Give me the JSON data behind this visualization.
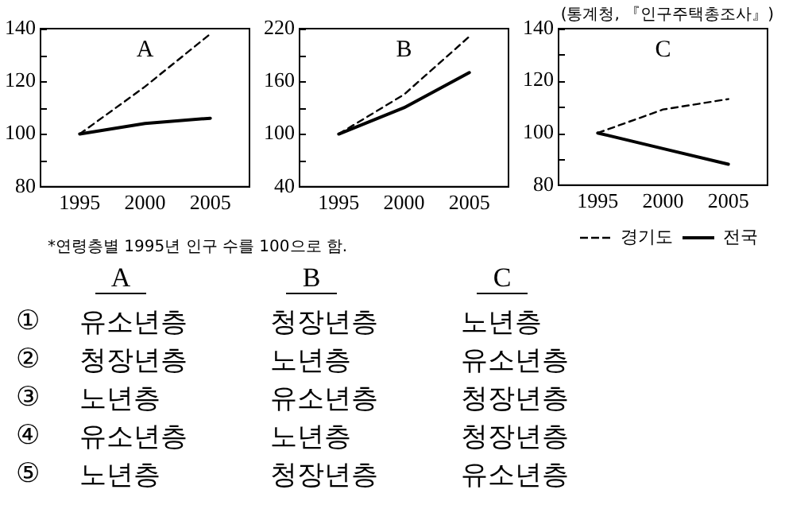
{
  "chart_data": [
    {
      "type": "line",
      "title": "A",
      "x": [
        1995,
        2000,
        2005
      ],
      "xlim": [
        1992,
        2008
      ],
      "xticks": [
        1995,
        2000,
        2005
      ],
      "ylim": [
        80,
        140
      ],
      "yticks": [
        80,
        {
          "value": 90,
          "label": null
        },
        100,
        {
          "value": 110,
          "label": null
        },
        120,
        {
          "value": 130,
          "label": null
        },
        140
      ],
      "grid": false,
      "legend": false,
      "marker": "none",
      "series": [
        {
          "color": "#000000",
          "line_style": "dashed",
          "values": [
            100,
            118,
            138
          ]
        },
        {
          "color": "#000000",
          "line_style": "solid",
          "values": [
            100,
            104,
            106
          ]
        }
      ],
      "annotations": [
        "*연령층별 1995년 인구 수를 100으로 함."
      ]
    },
    {
      "type": "line",
      "title": "B",
      "x": [
        1995,
        2000,
        2005
      ],
      "xlim": [
        1992,
        2008
      ],
      "xticks": [
        1995,
        2000,
        2005
      ],
      "ylim": [
        40,
        220
      ],
      "yticks": [
        40,
        {
          "value": 70,
          "label": null
        },
        100,
        {
          "value": 130,
          "label": null
        },
        160,
        {
          "value": 190,
          "label": null
        },
        220
      ],
      "grid": false,
      "legend": false,
      "marker": "none",
      "series": [
        {
          "color": "#000000",
          "line_style": "dashed",
          "values": [
            100,
            145,
            211
          ]
        },
        {
          "color": "#000000",
          "line_style": "solid",
          "values": [
            100,
            130,
            170
          ]
        }
      ]
    },
    {
      "type": "line",
      "title": "C",
      "x": [
        1995,
        2000,
        2005
      ],
      "xlim": [
        1992,
        2008
      ],
      "xticks": [
        1995,
        2000,
        2005
      ],
      "ylim": [
        80,
        140
      ],
      "yticks": [
        80,
        {
          "value": 90,
          "label": null
        },
        100,
        {
          "value": 110,
          "label": null
        },
        120,
        {
          "value": 130,
          "label": null
        },
        140
      ],
      "grid": false,
      "legend": "bottom right",
      "marker": "none",
      "series": [
        {
          "name": "경기도",
          "color": "#000000",
          "line_style": "dashed",
          "values": [
            100,
            109,
            113
          ]
        },
        {
          "name": "전국",
          "color": "#000000",
          "line_style": "solid",
          "values": [
            100,
            94,
            88
          ]
        }
      ],
      "annotations": [
        "(통계청, 『인구주택총조사』)"
      ]
    },
    {
      "type": "other",
      "annotations": [
        "A",
        "B",
        "C",
        "①",
        "유소년층",
        "청장년층",
        "노년층",
        "②",
        "청장년층",
        "노년층",
        "유소년층",
        "③",
        "노년층",
        "유소년층",
        "청장년층",
        "④",
        "유소년층",
        "노년층",
        "청장년층",
        "⑤",
        "노년층",
        "청장년층",
        "유소년층"
      ]
    }
  ]
}
